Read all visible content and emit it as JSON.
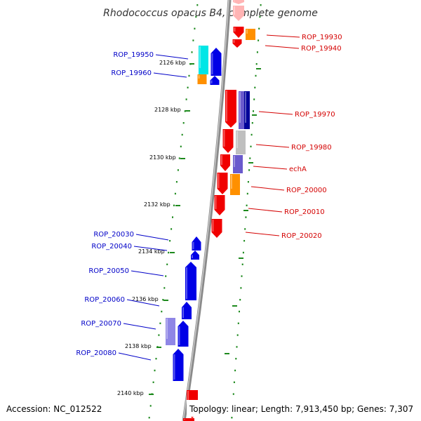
{
  "title": "Rhodococcus opacus B4, complete genome",
  "footer": {
    "accession": "Accession: NC_012522",
    "topology": "Topology: linear; Length: 7,913,450 bp; Genes: 7,307"
  },
  "colors": {
    "backbone": "#8a8a8a",
    "tick": "#1e8a1e",
    "left_label": "#0000c8",
    "right_label": "#d40000",
    "blue": "#0000e6",
    "red": "#f00000",
    "orange": "#ff9000",
    "cyan": "#00e6e6",
    "navy": "#000099",
    "slate": "#6a5acd",
    "lavender": "#8f86e6",
    "grey": "#bfbfbf",
    "pink": "#ffb4b4"
  },
  "scale_labels": [
    "2126 kbp",
    "2128 kbp",
    "2130 kbp",
    "2132 kbp",
    "2134 kbp",
    "2136 kbp",
    "2138 kbp",
    "2140 kbp"
  ],
  "genes_left": [
    "ROP_19950",
    "ROP_19960",
    "ROP_20030",
    "ROP_20040",
    "ROP_20050",
    "ROP_20060",
    "ROP_20070",
    "ROP_20080"
  ],
  "genes_right": [
    "ROP_19930",
    "ROP_19940",
    "ROP_19970",
    "ROP_19980",
    "echA",
    "ROP_20000",
    "ROP_20010",
    "ROP_20020"
  ]
}
